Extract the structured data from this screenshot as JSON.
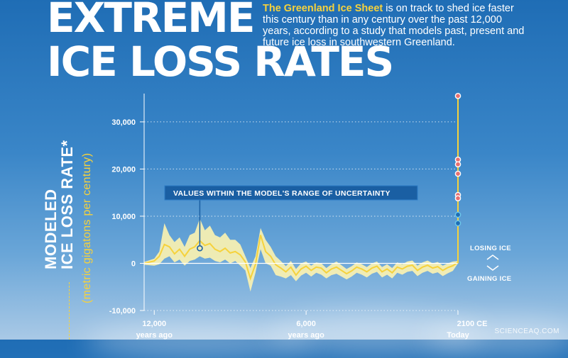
{
  "title": {
    "line1": "EXTREME",
    "line2": "ICE LOSS RATES"
  },
  "intro": {
    "highlight": "The Greenland Ice Sheet",
    "text": " is on track to shed ice faster this century than in any century over the past 12,000 years, according to a study that models past, present and future ice loss in southwestern Greenland."
  },
  "ylabel": {
    "line1": "MODELED",
    "line2": "ICE LOSS RATE*",
    "units": "(metric gigatons per century)"
  },
  "annotation": "VALUES WITHIN THE MODEL'S RANGE OF UNCERTAINTY",
  "side_labels": {
    "losing": "LOSING ICE",
    "gaining": "GAINING ICE"
  },
  "credit": "SCIENCEAQ.COM",
  "colors": {
    "band": "#fdf3b0",
    "line": "#f6d23c",
    "future_red": "#e87070",
    "future_blue": "#6ec8ea"
  },
  "chart_data": {
    "type": "line",
    "x_tick_labels": [
      {
        "value": -12000,
        "line1": "12,000",
        "line2": "years ago"
      },
      {
        "value": -6000,
        "line1": "6,000",
        "line2": "years ago"
      },
      {
        "value": 0,
        "line1": "2100 CE",
        "line2": "Today"
      }
    ],
    "y_tick_labels": [
      "30,000",
      "20,000",
      "10,000",
      "0",
      "-10,000"
    ],
    "ylim": [
      -10000,
      36000
    ],
    "xlim": [
      -12400,
      0
    ],
    "grid": "horizontal dotted",
    "series": [
      {
        "x": [
          -12400,
          -12000,
          -11800,
          -11600,
          -11400,
          -11200,
          -11000,
          -10800,
          -10600,
          -10400,
          -10200,
          -10000,
          -9800,
          -9600,
          -9400,
          -9200,
          -9000,
          -8800,
          -8600,
          -8400,
          -8200,
          -8000,
          -7800,
          -7600,
          -7400,
          -7200,
          -7000,
          -6800,
          -6600,
          -6400,
          -6200,
          -6000,
          -5800,
          -5600,
          -5400,
          -5200,
          -5000,
          -4800,
          -4600,
          -4400,
          -4200,
          -4000,
          -3800,
          -3600,
          -3400,
          -3200,
          -3000,
          -2800,
          -2600,
          -2400,
          -2200,
          -2000,
          -1800,
          -1600,
          -1400,
          -1200,
          -1000,
          -800,
          -600,
          -400,
          -200,
          0
        ],
        "mid": [
          0,
          500,
          1500,
          4000,
          3500,
          2000,
          3000,
          1500,
          3000,
          3500,
          4800,
          3800,
          4200,
          3000,
          2500,
          3200,
          2200,
          2500,
          1800,
          300,
          -3200,
          -200,
          6000,
          2500,
          1500,
          -300,
          -1000,
          -1800,
          -800,
          -2500,
          -1200,
          -600,
          -1500,
          -800,
          -1000,
          -2000,
          -1200,
          -800,
          -1500,
          -2200,
          -1600,
          -800,
          -1200,
          -1800,
          -1000,
          -600,
          -1800,
          -1200,
          -2000,
          -800,
          -1200,
          -600,
          -400,
          -1500,
          -800,
          -400,
          -1000,
          -700,
          -1500,
          -900,
          -500,
          200
        ],
        "upper": [
          300,
          1000,
          2500,
          8500,
          6000,
          4500,
          5500,
          3500,
          6000,
          6500,
          9500,
          7000,
          8000,
          6000,
          5500,
          6500,
          5000,
          5000,
          4000,
          1500,
          -1000,
          1500,
          7500,
          5000,
          3500,
          1500,
          500,
          -600,
          500,
          -1200,
          0,
          400,
          -500,
          200,
          0,
          -1000,
          -200,
          400,
          -400,
          -1200,
          -600,
          200,
          -200,
          -800,
          0,
          400,
          -800,
          -200,
          -1000,
          200,
          -200,
          400,
          600,
          -500,
          200,
          600,
          0,
          300,
          -500,
          0,
          400,
          500
        ],
        "lower": [
          -300,
          -500,
          -200,
          1000,
          1500,
          200,
          800,
          -500,
          500,
          800,
          1500,
          1000,
          1200,
          500,
          200,
          800,
          0,
          500,
          -500,
          -1500,
          -6000,
          -2000,
          3000,
          0,
          -500,
          -2500,
          -2800,
          -3200,
          -2500,
          -3800,
          -2600,
          -2000,
          -2800,
          -2000,
          -2400,
          -3200,
          -2500,
          -2200,
          -2800,
          -3400,
          -2800,
          -2000,
          -2400,
          -3000,
          -2200,
          -1800,
          -3000,
          -2400,
          -3200,
          -2000,
          -2400,
          -1800,
          -1600,
          -2700,
          -2000,
          -1600,
          -2200,
          -1900,
          -2700,
          -2100,
          -1600,
          0
        ]
      }
    ],
    "future_points": [
      {
        "value": 35500,
        "kind": "red"
      },
      {
        "value": 22000,
        "kind": "red"
      },
      {
        "value": 21000,
        "kind": "red"
      },
      {
        "value": 19000,
        "kind": "red"
      },
      {
        "value": 14500,
        "kind": "red"
      },
      {
        "value": 13800,
        "kind": "red"
      },
      {
        "value": 10300,
        "kind": "blue"
      },
      {
        "value": 8500,
        "kind": "blue"
      }
    ],
    "highlight_point": {
      "x": -10200,
      "y": 3200
    }
  }
}
